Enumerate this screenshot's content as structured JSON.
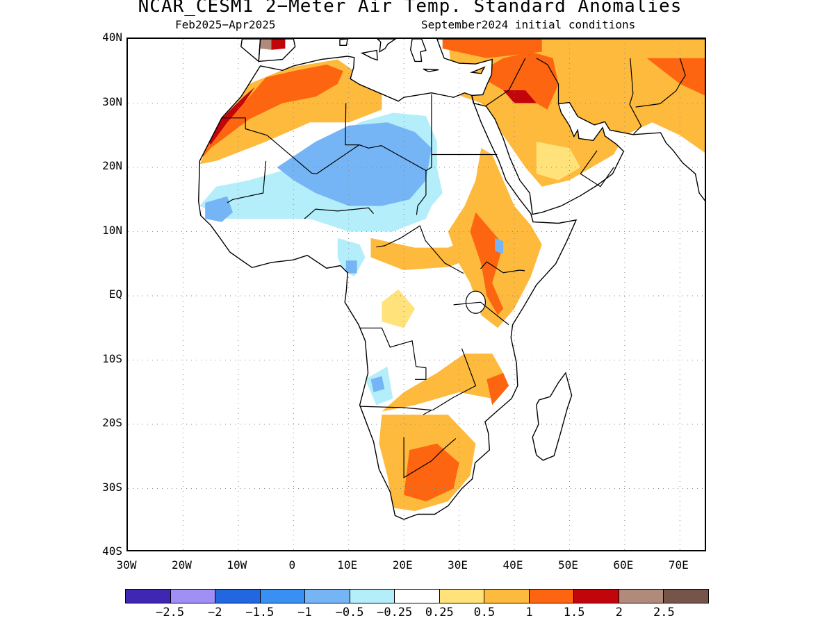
{
  "title": "NCAR_CESM1 2−Meter Air Temp. Standard Anomalies",
  "subtitle_left": "Feb2025−Apr2025",
  "subtitle_right": "September2024 initial conditions",
  "lat_labels": [
    "40N",
    "30N",
    "20N",
    "10N",
    "EQ",
    "10S",
    "20S",
    "30S",
    "40S"
  ],
  "lon_labels": [
    "30W",
    "20W",
    "10W",
    "0",
    "10E",
    "20E",
    "30E",
    "40E",
    "50E",
    "60E",
    "70E"
  ],
  "colorbar": {
    "colors": [
      "#3f26b3",
      "#a08ff4",
      "#2266e0",
      "#3a8ff2",
      "#75b5f5",
      "#b3eefa",
      "#ffffff",
      "#ffe27a",
      "#fdba3c",
      "#fd6510",
      "#c2050b",
      "#b08b7c",
      "#76544a"
    ],
    "labels": [
      "−2.5",
      "−2",
      "−1.5",
      "−1",
      "−0.5",
      "−0.25",
      "0.25",
      "0.5",
      "1",
      "1.5",
      "2",
      "2.5"
    ]
  },
  "map": {
    "lon_range": [
      -30,
      75
    ],
    "lat_range": [
      -40,
      40
    ]
  }
}
